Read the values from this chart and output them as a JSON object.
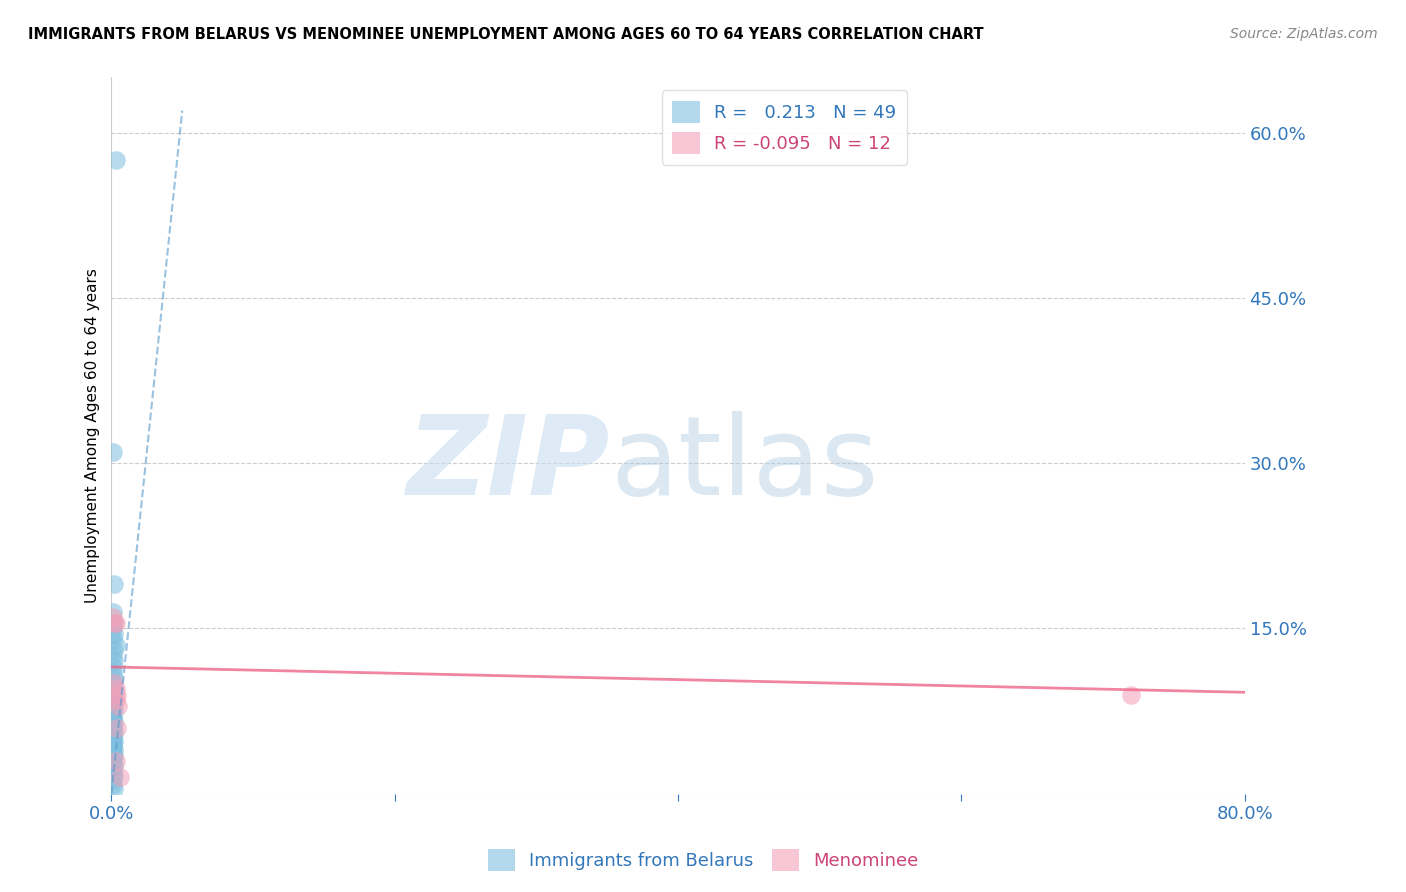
{
  "title": "IMMIGRANTS FROM BELARUS VS MENOMINEE UNEMPLOYMENT AMONG AGES 60 TO 64 YEARS CORRELATION CHART",
  "source": "Source: ZipAtlas.com",
  "ylabel": "Unemployment Among Ages 60 to 64 years",
  "xlim": [
    0.0,
    0.8
  ],
  "ylim": [
    0.0,
    0.65
  ],
  "y_ticks_right": [
    0.6,
    0.45,
    0.3,
    0.15,
    0.0
  ],
  "y_tick_labels_right": [
    "60.0%",
    "45.0%",
    "30.0%",
    "15.0%",
    ""
  ],
  "blue_color": "#7fbfdf",
  "pink_color": "#f4a0b8",
  "blue_line_color": "#5599cc",
  "pink_line_color": "#ee6688",
  "blue_scatter_x": [
    0.003,
    0.001,
    0.002,
    0.001,
    0.002,
    0.001,
    0.002,
    0.001,
    0.003,
    0.002,
    0.001,
    0.002,
    0.001,
    0.001,
    0.002,
    0.001,
    0.002,
    0.001,
    0.002,
    0.001,
    0.001,
    0.002,
    0.001,
    0.001,
    0.002,
    0.001,
    0.001,
    0.001,
    0.002,
    0.001,
    0.001,
    0.002,
    0.001,
    0.001,
    0.001,
    0.002,
    0.001,
    0.001,
    0.002,
    0.001,
    0.001,
    0.001,
    0.002,
    0.001,
    0.001,
    0.002,
    0.001,
    0.001,
    0.002
  ],
  "blue_scatter_y": [
    0.575,
    0.31,
    0.19,
    0.165,
    0.155,
    0.15,
    0.145,
    0.14,
    0.135,
    0.13,
    0.125,
    0.12,
    0.115,
    0.11,
    0.105,
    0.1,
    0.095,
    0.09,
    0.085,
    0.082,
    0.078,
    0.075,
    0.07,
    0.068,
    0.065,
    0.062,
    0.06,
    0.058,
    0.055,
    0.052,
    0.05,
    0.048,
    0.046,
    0.044,
    0.042,
    0.04,
    0.038,
    0.036,
    0.034,
    0.032,
    0.03,
    0.028,
    0.025,
    0.022,
    0.02,
    0.016,
    0.012,
    0.008,
    0.004
  ],
  "pink_scatter_x": [
    0.001,
    0.002,
    0.003,
    0.002,
    0.003,
    0.004,
    0.003,
    0.005,
    0.004,
    0.003,
    0.72,
    0.006
  ],
  "pink_scatter_y": [
    0.16,
    0.155,
    0.155,
    0.1,
    0.095,
    0.09,
    0.085,
    0.08,
    0.06,
    0.03,
    0.09,
    0.015
  ],
  "blue_trend_x": [
    0.0,
    0.05
  ],
  "blue_trend_y": [
    0.0,
    0.62
  ],
  "pink_trend_x": [
    0.0,
    0.8
  ],
  "pink_trend_y": [
    0.115,
    0.092
  ]
}
